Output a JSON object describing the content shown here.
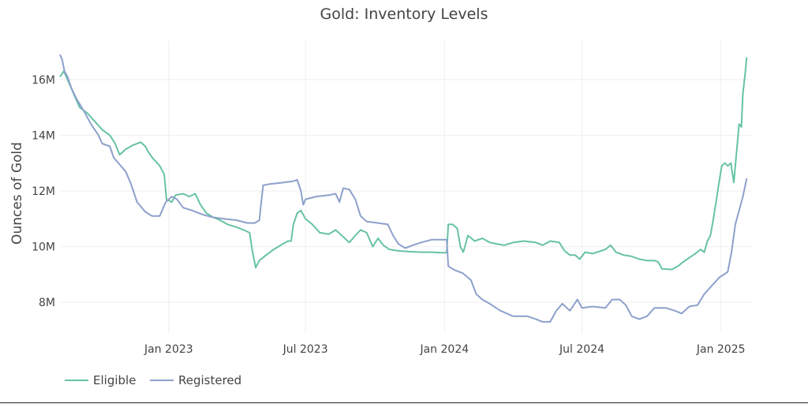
{
  "chart_data": {
    "type": "line",
    "title": "Gold: Inventory Levels",
    "xlabel": "",
    "ylabel": "Ounces of Gold",
    "x_ticks": [
      {
        "date": "2023-01-01",
        "label": "Jan 2023"
      },
      {
        "date": "2023-07-01",
        "label": "Jul 2023"
      },
      {
        "date": "2024-01-01",
        "label": "Jan 2024"
      },
      {
        "date": "2024-07-01",
        "label": "Jul 2024"
      },
      {
        "date": "2025-01-01",
        "label": "Jan 2025"
      }
    ],
    "y_ticks": [
      {
        "value": 8000000,
        "label": "8M"
      },
      {
        "value": 10000000,
        "label": "10M"
      },
      {
        "value": 12000000,
        "label": "12M"
      },
      {
        "value": 14000000,
        "label": "14M"
      },
      {
        "value": 16000000,
        "label": "16M"
      }
    ],
    "xlim": [
      "2022-08-10",
      "2025-02-10"
    ],
    "ylim": [
      6900000,
      17100000
    ],
    "grid": true,
    "legend_position": "bottom-left",
    "series": [
      {
        "name": "Eligible",
        "color": "#66c2a5",
        "points": [
          [
            "2022-08-10",
            16100000
          ],
          [
            "2022-08-15",
            16300000
          ],
          [
            "2022-08-20",
            16000000
          ],
          [
            "2022-08-28",
            15500000
          ],
          [
            "2022-09-05",
            15000000
          ],
          [
            "2022-09-15",
            14800000
          ],
          [
            "2022-09-25",
            14500000
          ],
          [
            "2022-10-05",
            14200000
          ],
          [
            "2022-10-15",
            14000000
          ],
          [
            "2022-10-22",
            13700000
          ],
          [
            "2022-10-28",
            13300000
          ],
          [
            "2022-11-05",
            13500000
          ],
          [
            "2022-11-15",
            13650000
          ],
          [
            "2022-11-25",
            13750000
          ],
          [
            "2022-12-01",
            13600000
          ],
          [
            "2022-12-05",
            13400000
          ],
          [
            "2022-12-10",
            13200000
          ],
          [
            "2022-12-20",
            12900000
          ],
          [
            "2022-12-26",
            12600000
          ],
          [
            "2022-12-29",
            11700000
          ],
          [
            "2023-01-05",
            11600000
          ],
          [
            "2023-01-10",
            11850000
          ],
          [
            "2023-01-20",
            11900000
          ],
          [
            "2023-01-28",
            11800000
          ],
          [
            "2023-02-05",
            11900000
          ],
          [
            "2023-02-12",
            11500000
          ],
          [
            "2023-02-20",
            11200000
          ],
          [
            "2023-03-01",
            11050000
          ],
          [
            "2023-03-10",
            10950000
          ],
          [
            "2023-03-20",
            10800000
          ],
          [
            "2023-04-01",
            10700000
          ],
          [
            "2023-04-10",
            10600000
          ],
          [
            "2023-04-18",
            10500000
          ],
          [
            "2023-04-22",
            9800000
          ],
          [
            "2023-04-26",
            9250000
          ],
          [
            "2023-05-01",
            9500000
          ],
          [
            "2023-05-10",
            9700000
          ],
          [
            "2023-05-20",
            9900000
          ],
          [
            "2023-06-01",
            10100000
          ],
          [
            "2023-06-08",
            10200000
          ],
          [
            "2023-06-12",
            10200000
          ],
          [
            "2023-06-15",
            10800000
          ],
          [
            "2023-06-20",
            11200000
          ],
          [
            "2023-06-25",
            11300000
          ],
          [
            "2023-07-01",
            11000000
          ],
          [
            "2023-07-10",
            10800000
          ],
          [
            "2023-07-20",
            10500000
          ],
          [
            "2023-08-01",
            10450000
          ],
          [
            "2023-08-10",
            10600000
          ],
          [
            "2023-08-20",
            10350000
          ],
          [
            "2023-08-28",
            10150000
          ],
          [
            "2023-09-05",
            10400000
          ],
          [
            "2023-09-12",
            10600000
          ],
          [
            "2023-09-20",
            10500000
          ],
          [
            "2023-09-28",
            10000000
          ],
          [
            "2023-10-05",
            10300000
          ],
          [
            "2023-10-12",
            10050000
          ],
          [
            "2023-10-20",
            9900000
          ],
          [
            "2023-11-01",
            9850000
          ],
          [
            "2023-11-15",
            9820000
          ],
          [
            "2023-12-01",
            9800000
          ],
          [
            "2023-12-15",
            9800000
          ],
          [
            "2023-12-31",
            9780000
          ],
          [
            "2024-01-04",
            9790000
          ],
          [
            "2024-01-06",
            10800000
          ],
          [
            "2024-01-12",
            10800000
          ],
          [
            "2024-01-18",
            10650000
          ],
          [
            "2024-01-22",
            10000000
          ],
          [
            "2024-01-26",
            9800000
          ],
          [
            "2024-02-01",
            10400000
          ],
          [
            "2024-02-10",
            10200000
          ],
          [
            "2024-02-20",
            10300000
          ],
          [
            "2024-03-01",
            10150000
          ],
          [
            "2024-03-10",
            10100000
          ],
          [
            "2024-03-20",
            10050000
          ],
          [
            "2024-04-01",
            10150000
          ],
          [
            "2024-04-15",
            10200000
          ],
          [
            "2024-05-01",
            10150000
          ],
          [
            "2024-05-10",
            10050000
          ],
          [
            "2024-05-20",
            10200000
          ],
          [
            "2024-06-01",
            10150000
          ],
          [
            "2024-06-08",
            9850000
          ],
          [
            "2024-06-15",
            9700000
          ],
          [
            "2024-06-22",
            9700000
          ],
          [
            "2024-06-28",
            9550000
          ],
          [
            "2024-07-05",
            9800000
          ],
          [
            "2024-07-15",
            9750000
          ],
          [
            "2024-08-01",
            9900000
          ],
          [
            "2024-08-08",
            10050000
          ],
          [
            "2024-08-15",
            9800000
          ],
          [
            "2024-08-25",
            9700000
          ],
          [
            "2024-09-05",
            9650000
          ],
          [
            "2024-09-15",
            9550000
          ],
          [
            "2024-09-25",
            9500000
          ],
          [
            "2024-10-05",
            9500000
          ],
          [
            "2024-10-10",
            9450000
          ],
          [
            "2024-10-15",
            9200000
          ],
          [
            "2024-10-28",
            9180000
          ],
          [
            "2024-11-05",
            9300000
          ],
          [
            "2024-11-12",
            9450000
          ],
          [
            "2024-11-20",
            9600000
          ],
          [
            "2024-11-28",
            9750000
          ],
          [
            "2024-12-05",
            9900000
          ],
          [
            "2024-12-10",
            9800000
          ],
          [
            "2024-12-14",
            10200000
          ],
          [
            "2024-12-18",
            10400000
          ],
          [
            "2024-12-22",
            11000000
          ],
          [
            "2024-12-26",
            11700000
          ],
          [
            "2024-12-30",
            12400000
          ],
          [
            "2025-01-02",
            12900000
          ],
          [
            "2025-01-06",
            13000000
          ],
          [
            "2025-01-10",
            12900000
          ],
          [
            "2025-01-14",
            13000000
          ],
          [
            "2025-01-18",
            12300000
          ],
          [
            "2025-01-22",
            13500000
          ],
          [
            "2025-01-25",
            14400000
          ],
          [
            "2025-01-28",
            14300000
          ],
          [
            "2025-01-30",
            15500000
          ],
          [
            "2025-02-02",
            16200000
          ],
          [
            "2025-02-04",
            16800000
          ]
        ]
      },
      {
        "name": "Registered",
        "color": "#8da0cb",
        "points": [
          [
            "2022-08-10",
            16900000
          ],
          [
            "2022-08-13",
            16700000
          ],
          [
            "2022-08-16",
            16300000
          ],
          [
            "2022-08-20",
            16100000
          ],
          [
            "2022-08-25",
            15700000
          ],
          [
            "2022-09-01",
            15300000
          ],
          [
            "2022-09-10",
            14900000
          ],
          [
            "2022-09-20",
            14400000
          ],
          [
            "2022-09-30",
            14000000
          ],
          [
            "2022-10-05",
            13700000
          ],
          [
            "2022-10-15",
            13600000
          ],
          [
            "2022-10-20",
            13200000
          ],
          [
            "2022-10-28",
            12950000
          ],
          [
            "2022-11-05",
            12700000
          ],
          [
            "2022-11-12",
            12250000
          ],
          [
            "2022-11-20",
            11600000
          ],
          [
            "2022-12-01",
            11250000
          ],
          [
            "2022-12-10",
            11100000
          ],
          [
            "2022-12-20",
            11100000
          ],
          [
            "2022-12-28",
            11600000
          ],
          [
            "2023-01-05",
            11800000
          ],
          [
            "2023-01-12",
            11700000
          ],
          [
            "2023-01-20",
            11400000
          ],
          [
            "2023-02-01",
            11300000
          ],
          [
            "2023-02-15",
            11150000
          ],
          [
            "2023-03-01",
            11050000
          ],
          [
            "2023-03-15",
            11000000
          ],
          [
            "2023-04-01",
            10950000
          ],
          [
            "2023-04-15",
            10850000
          ],
          [
            "2023-04-25",
            10850000
          ],
          [
            "2023-05-01",
            10950000
          ],
          [
            "2023-05-03",
            11500000
          ],
          [
            "2023-05-06",
            12200000
          ],
          [
            "2023-05-15",
            12250000
          ],
          [
            "2023-06-01",
            12300000
          ],
          [
            "2023-06-15",
            12350000
          ],
          [
            "2023-06-20",
            12400000
          ],
          [
            "2023-06-25",
            12000000
          ],
          [
            "2023-06-28",
            11500000
          ],
          [
            "2023-07-01",
            11700000
          ],
          [
            "2023-07-15",
            11800000
          ],
          [
            "2023-08-01",
            11850000
          ],
          [
            "2023-08-10",
            11900000
          ],
          [
            "2023-08-15",
            11600000
          ],
          [
            "2023-08-20",
            12100000
          ],
          [
            "2023-08-28",
            12050000
          ],
          [
            "2023-09-05",
            11700000
          ],
          [
            "2023-09-12",
            11100000
          ],
          [
            "2023-09-20",
            10900000
          ],
          [
            "2023-10-05",
            10850000
          ],
          [
            "2023-10-18",
            10800000
          ],
          [
            "2023-10-25",
            10400000
          ],
          [
            "2023-11-01",
            10100000
          ],
          [
            "2023-11-10",
            9950000
          ],
          [
            "2023-11-20",
            10050000
          ],
          [
            "2023-12-01",
            10150000
          ],
          [
            "2023-12-15",
            10250000
          ],
          [
            "2024-01-04",
            10250000
          ],
          [
            "2024-01-06",
            9300000
          ],
          [
            "2024-01-15",
            9150000
          ],
          [
            "2024-01-25",
            9050000
          ],
          [
            "2024-02-05",
            8800000
          ],
          [
            "2024-02-12",
            8300000
          ],
          [
            "2024-02-20",
            8100000
          ],
          [
            "2024-03-01",
            7950000
          ],
          [
            "2024-03-15",
            7700000
          ],
          [
            "2024-04-01",
            7500000
          ],
          [
            "2024-04-20",
            7500000
          ],
          [
            "2024-05-01",
            7400000
          ],
          [
            "2024-05-10",
            7300000
          ],
          [
            "2024-05-20",
            7300000
          ],
          [
            "2024-05-28",
            7700000
          ],
          [
            "2024-06-05",
            7950000
          ],
          [
            "2024-06-15",
            7700000
          ],
          [
            "2024-06-25",
            8100000
          ],
          [
            "2024-07-01",
            7800000
          ],
          [
            "2024-07-15",
            7850000
          ],
          [
            "2024-08-01",
            7800000
          ],
          [
            "2024-08-10",
            8100000
          ],
          [
            "2024-08-20",
            8100000
          ],
          [
            "2024-08-28",
            7900000
          ],
          [
            "2024-09-05",
            7500000
          ],
          [
            "2024-09-15",
            7400000
          ],
          [
            "2024-09-25",
            7500000
          ],
          [
            "2024-10-05",
            7800000
          ],
          [
            "2024-10-20",
            7800000
          ],
          [
            "2024-11-01",
            7700000
          ],
          [
            "2024-11-10",
            7600000
          ],
          [
            "2024-11-20",
            7850000
          ],
          [
            "2024-12-01",
            7900000
          ],
          [
            "2024-12-10",
            8300000
          ],
          [
            "2024-12-20",
            8600000
          ],
          [
            "2024-12-30",
            8900000
          ],
          [
            "2025-01-05",
            9000000
          ],
          [
            "2025-01-10",
            9100000
          ],
          [
            "2025-01-15",
            9800000
          ],
          [
            "2025-01-20",
            10800000
          ],
          [
            "2025-01-25",
            11300000
          ],
          [
            "2025-01-30",
            11800000
          ],
          [
            "2025-02-04",
            12450000
          ]
        ]
      }
    ]
  }
}
